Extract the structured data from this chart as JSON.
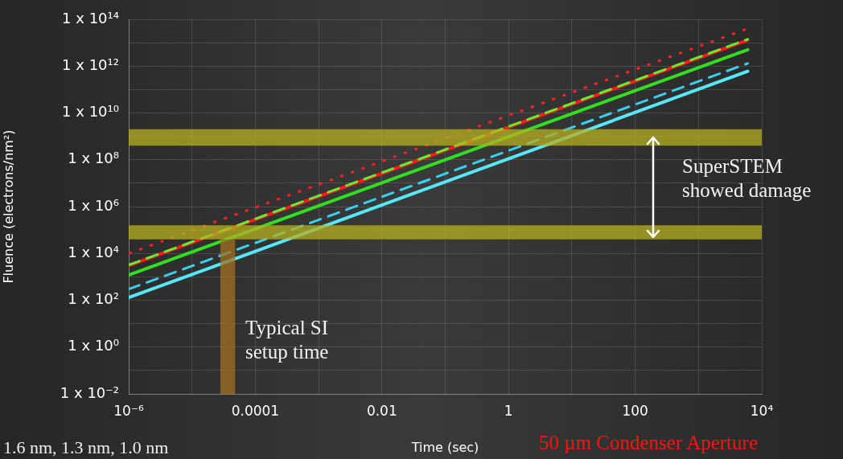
{
  "chart_data": {
    "type": "line",
    "xlabel": "Time (sec)",
    "ylabel": "Fluence (electrons/nm²)",
    "log": "xy",
    "grid": true,
    "legend": false,
    "marker": "none",
    "x": [
      1e-06,
      6000
    ],
    "series": [
      {
        "color": "#ff2020",
        "line_style": "dotted",
        "values": [
          10000,
          40000000000000
        ]
      },
      {
        "color": "#66ee33",
        "line_style": "dashed",
        "values": [
          3200,
          14000000000000
        ]
      },
      {
        "color": "#ff1a1a",
        "line_style": "solid",
        "values": [
          3000,
          13000000000000
        ]
      },
      {
        "color": "#33dd22",
        "line_style": "solid",
        "values": [
          1200,
          5000000000000
        ]
      },
      {
        "color": "#38d0ee",
        "line_style": "dashed",
        "values": [
          300,
          1300000000000
        ]
      },
      {
        "color": "#55e8f8",
        "line_style": "solid",
        "values": [
          130,
          600000000000
        ]
      }
    ],
    "xlim": [
      1e-06,
      10000
    ],
    "xticks": [
      {
        "value": 1e-06,
        "label": "10⁻⁶"
      },
      {
        "value": 1e-05,
        "label": null
      },
      {
        "value": 0.0001,
        "label": "0.0001"
      },
      {
        "value": 0.001,
        "label": null
      },
      {
        "value": 0.01,
        "label": "0.01"
      },
      {
        "value": 0.1,
        "label": null
      },
      {
        "value": 1,
        "label": "1"
      },
      {
        "value": 10,
        "label": null
      },
      {
        "value": 100,
        "label": "100"
      },
      {
        "value": 1000,
        "label": null
      },
      {
        "value": 10000,
        "label": "10⁴"
      }
    ],
    "ylim": [
      0.01,
      100000000000000
    ],
    "yticks": [
      {
        "value": 0.01,
        "label": "1 x 10⁻²"
      },
      {
        "value": 0.1,
        "label": null
      },
      {
        "value": 1,
        "label": "1 x 10⁰"
      },
      {
        "value": 10,
        "label": null
      },
      {
        "value": 100,
        "label": "1 x 10²"
      },
      {
        "value": 1000,
        "label": null
      },
      {
        "value": 10000,
        "label": "1 x 10⁴"
      },
      {
        "value": 100000,
        "label": null
      },
      {
        "value": 1000000,
        "label": "1 x 10⁶"
      },
      {
        "value": 10000000,
        "label": null
      },
      {
        "value": 100000000,
        "label": "1 x 10⁸"
      },
      {
        "value": 1000000000,
        "label": null
      },
      {
        "value": 10000000000,
        "label": "1 x 10¹⁰"
      },
      {
        "value": 100000000000,
        "label": null
      },
      {
        "value": 1000000000000,
        "label": "1 x 10¹²"
      },
      {
        "value": 10000000000000,
        "label": null
      },
      {
        "value": 100000000000000,
        "label": "1 x 10¹⁴"
      }
    ],
    "bands": [
      {
        "axis": "y",
        "from": 400000000,
        "to": 2000000000,
        "color": "#b5b020"
      },
      {
        "axis": "y",
        "from": 40000,
        "to": 160000,
        "color": "#b5b020"
      },
      {
        "axis": "x",
        "from": 2.8e-05,
        "to": 4.8e-05,
        "color": "#a0701e"
      }
    ],
    "annotations": [
      "Typical SI\nsetup time",
      "SuperSTEM\nshowed damage",
      "50 µm Condenser Aperture",
      "1.6 nm, 1.3 nm, 1.0 nm"
    ]
  }
}
